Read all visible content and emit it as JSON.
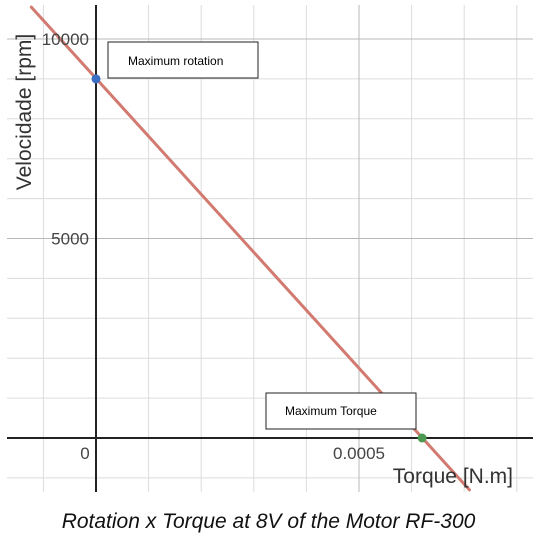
{
  "chart_data": {
    "type": "line",
    "title": "",
    "xlabel": "Torque [N.m]",
    "ylabel": "Velocidade [rpm]",
    "xlim": [
      -0.0001,
      0.00083
    ],
    "ylim": [
      -1300,
      10800
    ],
    "x_ticks": [
      {
        "value": 0,
        "label": "0"
      },
      {
        "value": 0.0005,
        "label": "0.0005"
      }
    ],
    "y_ticks": [
      {
        "value": 5000,
        "label": "5000"
      },
      {
        "value": 10000,
        "label": "10000"
      }
    ],
    "grid": true,
    "series": [
      {
        "type": "line",
        "color": "#d27a70",
        "x": [
          -0.000123,
          0.00071
        ],
        "y": [
          10800,
          -1300
        ]
      }
    ],
    "points": [
      {
        "label": "Maximum rotation",
        "x": 0,
        "y": 9000,
        "color": "#3a6fc4"
      },
      {
        "label": "Maximum Torque",
        "x": 0.00062,
        "y": 0,
        "color": "#4c9a52"
      }
    ]
  },
  "caption": "Rotation x Torque at 8V of the Motor RF-300"
}
